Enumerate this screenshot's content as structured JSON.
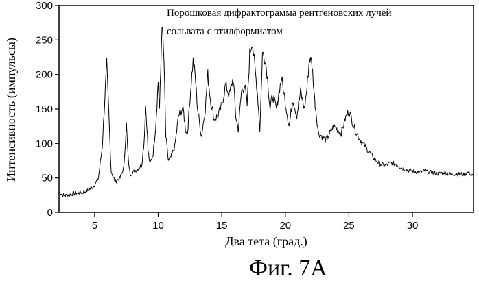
{
  "chart_data": {
    "type": "line",
    "title": "",
    "annotation": [
      "Порошковая дифрактограмма рентгеновских лучей",
      "сольвата с этилформиатом"
    ],
    "xlabel": "Два тета (град.)",
    "ylabel": "Интенсивность (импульсы)",
    "xlim": [
      2.2,
      34.8
    ],
    "ylim": [
      0,
      300
    ],
    "xticks": [
      5,
      10,
      15,
      20,
      25,
      30
    ],
    "yticks": [
      0,
      50,
      100,
      150,
      200,
      250,
      300
    ],
    "grid": false,
    "legend": "none",
    "line_color": "#000000",
    "series": [
      {
        "x": [
          2.2,
          2.6,
          3.0,
          3.5,
          4.0,
          4.5,
          5.0,
          5.3,
          5.6,
          5.8,
          5.95,
          6.1,
          6.3,
          6.6,
          7.0,
          7.3,
          7.5,
          7.65,
          7.8,
          8.0,
          8.3,
          8.7,
          8.9,
          9.0,
          9.1,
          9.2,
          9.35,
          9.6,
          9.8,
          10.0,
          10.1,
          10.2,
          10.3,
          10.45,
          10.6,
          10.8,
          11.0,
          11.3,
          11.6,
          11.9,
          12.0,
          12.15,
          12.3,
          12.6,
          12.75,
          12.9,
          13.1,
          13.4,
          13.7,
          13.9,
          14.1,
          14.4,
          14.7,
          15.0,
          15.3,
          15.6,
          15.9,
          16.1,
          16.3,
          16.55,
          16.8,
          17.0,
          17.2,
          17.4,
          17.6,
          17.8,
          18.0,
          18.2,
          18.4,
          18.6,
          18.8,
          19.0,
          19.3,
          19.5,
          19.7,
          20.0,
          20.3,
          20.6,
          20.9,
          21.2,
          21.5,
          21.7,
          21.9,
          22.1,
          22.3,
          22.6,
          22.9,
          23.2,
          23.5,
          23.8,
          24.1,
          24.4,
          24.7,
          25.0,
          25.3,
          25.6,
          25.9,
          26.3,
          26.7,
          27.1,
          27.5,
          27.9,
          28.3,
          28.7,
          29.1,
          29.5,
          30.0,
          30.5,
          31.0,
          31.5,
          32.0,
          32.5,
          33.0,
          33.5,
          34.0,
          34.4,
          34.8
        ],
        "values": [
          30,
          24,
          26,
          28,
          29,
          32,
          40,
          50,
          95,
          165,
          215,
          150,
          60,
          45,
          50,
          65,
          128,
          75,
          55,
          58,
          62,
          68,
          105,
          155,
          130,
          90,
          70,
          85,
          125,
          190,
          150,
          205,
          278,
          220,
          110,
          75,
          80,
          95,
          140,
          150,
          145,
          120,
          115,
          190,
          220,
          200,
          150,
          110,
          150,
          200,
          165,
          135,
          140,
          155,
          185,
          170,
          195,
          140,
          120,
          175,
          185,
          155,
          230,
          250,
          210,
          175,
          120,
          230,
          225,
          195,
          150,
          170,
          150,
          175,
          195,
          160,
          125,
          165,
          140,
          175,
          150,
          180,
          225,
          215,
          165,
          115,
          110,
          105,
          115,
          125,
          120,
          115,
          135,
          148,
          130,
          115,
          105,
          95,
          85,
          75,
          70,
          68,
          72,
          70,
          65,
          62,
          60,
          58,
          60,
          58,
          56,
          58,
          55,
          56,
          55,
          58,
          52
        ]
      }
    ]
  },
  "figure_caption": "Фиг. 7A"
}
